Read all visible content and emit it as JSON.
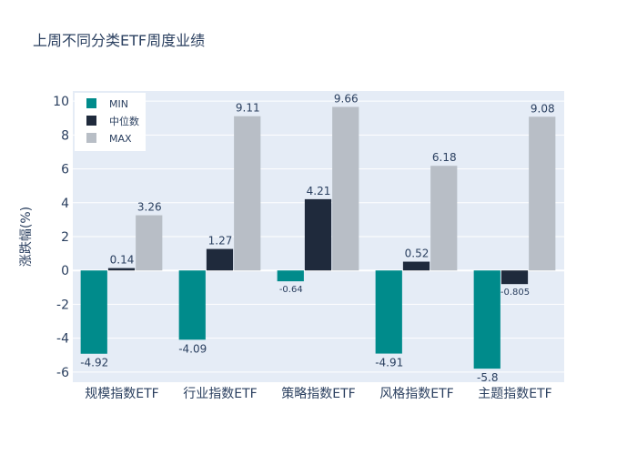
{
  "chart_data": {
    "type": "bar",
    "title": "上周不同分类ETF周度业绩",
    "xlabel": "",
    "ylabel": "涨跌幅(%)",
    "categories": [
      "规模指数ETF",
      "行业指数ETF",
      "策略指数ETF",
      "风格指数ETF",
      "主题指数ETF"
    ],
    "series": [
      {
        "name": "MIN",
        "values": [
          -4.92,
          -4.09,
          -0.64,
          -4.91,
          -5.8
        ],
        "labels": [
          "-4.92",
          "-4.09",
          "-0.64",
          "-4.91",
          "-5.8"
        ],
        "color": "#008b8b"
      },
      {
        "name": "中位数",
        "values": [
          0.14,
          1.27,
          4.21,
          0.52,
          -0.805
        ],
        "labels": [
          "0.14",
          "1.27",
          "4.21",
          "0.52",
          "-0.805"
        ],
        "color": "#1f2a3c"
      },
      {
        "name": "MAX",
        "values": [
          3.26,
          9.11,
          9.66,
          6.18,
          9.08
        ],
        "labels": [
          "3.26",
          "9.11",
          "9.66",
          "6.18",
          "9.08"
        ],
        "color": "#b8bec6"
      }
    ],
    "ylim": [
      -6.6,
      10.6
    ],
    "yticks": [
      -6,
      -4,
      -2,
      0,
      2,
      4,
      6,
      8,
      10
    ],
    "grid": true,
    "legend": "top-left",
    "plot_bg": "#e5ecf6"
  }
}
